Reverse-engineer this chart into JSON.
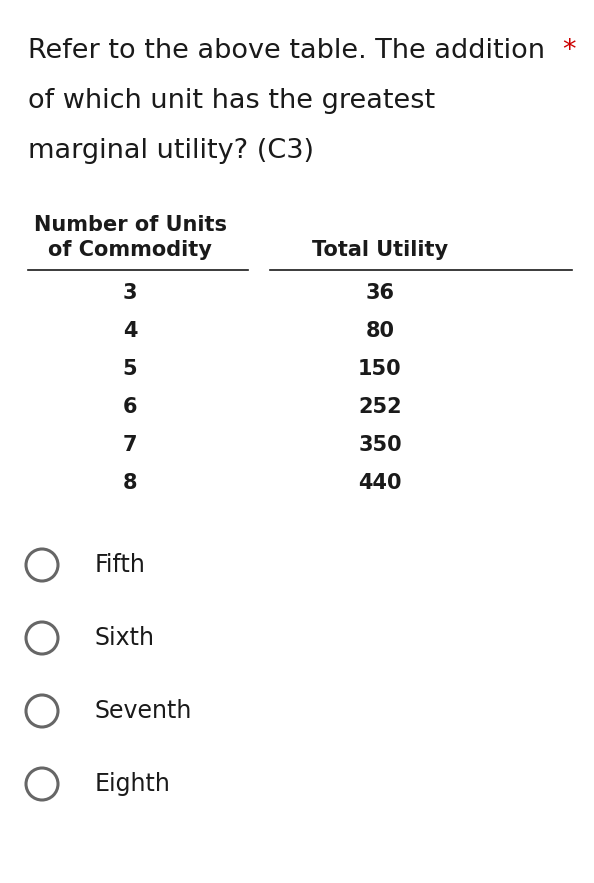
{
  "background_color": "#ffffff",
  "question_line1": "Refer to the above table. The addition",
  "question_line2": "of which unit has the greatest",
  "question_line3": "marginal utility? (C3)",
  "asterisk": "*",
  "col1_header_line1": "Number of Units",
  "col1_header_line2": "of Commodity",
  "col2_header": "Total Utility",
  "table_units": [
    3,
    4,
    5,
    6,
    7,
    8
  ],
  "table_utility": [
    36,
    80,
    150,
    252,
    350,
    440
  ],
  "options": [
    "Fifth",
    "Sixth",
    "Seventh",
    "Eighth"
  ],
  "question_fontsize": 19.5,
  "table_header_fontsize": 15,
  "table_data_fontsize": 15,
  "option_fontsize": 17,
  "text_color": "#1a1a1a",
  "asterisk_color": "#cc0000",
  "circle_color": "#666666",
  "fig_width": 5.94,
  "fig_height": 8.83,
  "dpi": 100
}
